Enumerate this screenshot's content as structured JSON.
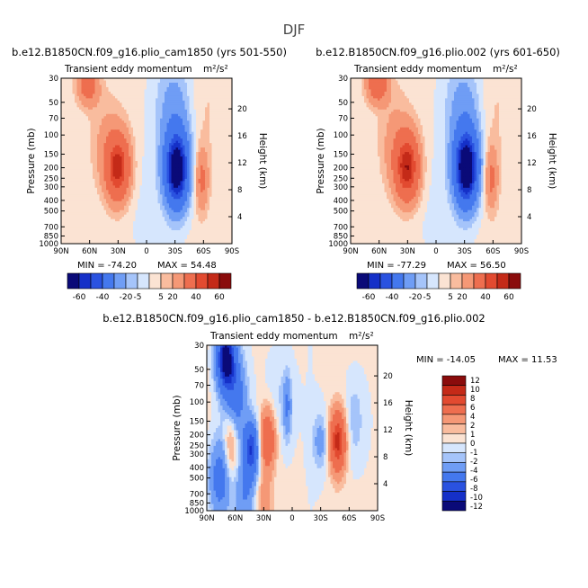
{
  "page_title": "DJF",
  "palettes": {
    "top": [
      "#0a0a78",
      "#1530c8",
      "#2a52e0",
      "#4478ee",
      "#6f9df5",
      "#a5c4fa",
      "#d6e6fd",
      "#fbe3d3",
      "#f9bc9e",
      "#f59876",
      "#ee6e4f",
      "#e24a30",
      "#c42a18",
      "#8a0c0c"
    ],
    "bottom": [
      "#0a0a78",
      "#1530c8",
      "#2a52e0",
      "#4478ee",
      "#6f9df5",
      "#a5c4fa",
      "#d6e6fd",
      "#fbe3d3",
      "#f9bc9e",
      "#f59876",
      "#ee6e4f",
      "#e24a30",
      "#c42a18",
      "#8a0c0c"
    ]
  },
  "shared_labels": {
    "variable": "Transient eddy momentum",
    "units": "m²/s²",
    "ylabel_left": "Pressure (mb)",
    "ylabel_right": "Height (km)",
    "x_ticks": [
      "90N",
      "60N",
      "30N",
      "0",
      "30S",
      "60S",
      "90S"
    ],
    "p_ticks": [
      "30",
      "50",
      "70",
      "100",
      "150",
      "200",
      "250",
      "300",
      "400",
      "500",
      "700",
      "850",
      "1000"
    ],
    "h_ticks": [
      "20",
      "16",
      "12",
      "8",
      "4"
    ]
  },
  "chart_data": [
    {
      "id": "left",
      "type": "heatmap",
      "title": "b.e12.B1850CN.f09_g16.plio_cam1850 (yrs 501-550)",
      "min_text": "MIN = -74.20",
      "max_text": "MAX = 54.48",
      "min": -74.2,
      "max": 54.48,
      "colorbar_labels": [
        "-60",
        "-40",
        "-20",
        "-5",
        "5",
        "20",
        "40",
        "60"
      ],
      "blobs": [
        {
          "lat": 62,
          "p": 35,
          "dlat": 8,
          "dlogp": 0.13,
          "amp": 28
        },
        {
          "lat": 30,
          "p": 200,
          "dlat": 9,
          "dlogp": 0.22,
          "amp": 54
        },
        {
          "lat": 45,
          "p": 120,
          "dlat": 12,
          "dlogp": 0.35,
          "amp": 10
        },
        {
          "lat": -32,
          "p": 210,
          "dlat": 9,
          "dlogp": 0.24,
          "amp": -74
        },
        {
          "lat": -30,
          "p": 60,
          "dlat": 14,
          "dlogp": 0.35,
          "amp": -14
        },
        {
          "lat": -58,
          "p": 260,
          "dlat": 5,
          "dlogp": 0.2,
          "amp": 22
        },
        {
          "lat": 15,
          "p": 400,
          "dlat": 20,
          "dlogp": 0.4,
          "amp": -3
        },
        {
          "lat": -60,
          "p": 60,
          "dlat": 15,
          "dlogp": 0.4,
          "amp": 4
        }
      ],
      "base": 2
    },
    {
      "id": "right",
      "type": "heatmap",
      "title": "b.e12.B1850CN.f09_g16.plio.002 (yrs 601-650)",
      "min_text": "MIN = -77.29",
      "max_text": "MAX = 56.50",
      "min": -77.29,
      "max": 56.5,
      "colorbar_labels": [
        "-60",
        "-40",
        "-20",
        "-5",
        "5",
        "20",
        "40",
        "60"
      ],
      "blobs": [
        {
          "lat": 62,
          "p": 33,
          "dlat": 8,
          "dlogp": 0.13,
          "amp": 36
        },
        {
          "lat": 30,
          "p": 200,
          "dlat": 9,
          "dlogp": 0.22,
          "amp": 56
        },
        {
          "lat": 45,
          "p": 120,
          "dlat": 12,
          "dlogp": 0.35,
          "amp": 12
        },
        {
          "lat": -32,
          "p": 205,
          "dlat": 9,
          "dlogp": 0.24,
          "amp": -77
        },
        {
          "lat": -30,
          "p": 60,
          "dlat": 14,
          "dlogp": 0.35,
          "amp": -14
        },
        {
          "lat": -58,
          "p": 250,
          "dlat": 5,
          "dlogp": 0.2,
          "amp": 22
        },
        {
          "lat": 15,
          "p": 400,
          "dlat": 20,
          "dlogp": 0.4,
          "amp": -3
        },
        {
          "lat": -60,
          "p": 60,
          "dlat": 15,
          "dlogp": 0.4,
          "amp": 4
        }
      ],
      "base": 2
    },
    {
      "id": "diff",
      "type": "heatmap",
      "title": "b.e12.B1850CN.f09_g16.plio_cam1850 - b.e12.B1850CN.f09_g16.plio.002",
      "min_text": "MIN = -14.05",
      "max_text": "MAX = 11.53",
      "min": -14.05,
      "max": 11.53,
      "colorbar_labels": [
        "12",
        "10",
        "8",
        "6",
        "4",
        "2",
        "1",
        "0",
        "-1",
        "-2",
        "-4",
        "-6",
        "-8",
        "-10",
        "-12"
      ],
      "blobs": [
        {
          "lat": 70,
          "p": 40,
          "dlat": 7,
          "dlogp": 0.2,
          "amp": -14
        },
        {
          "lat": 60,
          "p": 90,
          "dlat": 8,
          "dlogp": 0.25,
          "amp": -6
        },
        {
          "lat": 43,
          "p": 270,
          "dlat": 6,
          "dlogp": 0.18,
          "amp": -10
        },
        {
          "lat": 26,
          "p": 220,
          "dlat": 6,
          "dlogp": 0.2,
          "amp": 8
        },
        {
          "lat": -48,
          "p": 230,
          "dlat": 6,
          "dlogp": 0.2,
          "amp": 11
        },
        {
          "lat": -30,
          "p": 230,
          "dlat": 6,
          "dlogp": 0.18,
          "amp": -3
        },
        {
          "lat": 76,
          "p": 500,
          "dlat": 8,
          "dlogp": 0.25,
          "amp": -6
        },
        {
          "lat": 50,
          "p": 700,
          "dlat": 8,
          "dlogp": 0.2,
          "amp": -4
        },
        {
          "lat": 65,
          "p": 250,
          "dlat": 5,
          "dlogp": 0.25,
          "amp": 4
        },
        {
          "lat": 5,
          "p": 110,
          "dlat": 3,
          "dlogp": 0.2,
          "amp": -4
        },
        {
          "lat": -65,
          "p": 150,
          "dlat": 8,
          "dlogp": 0.3,
          "amp": -2
        },
        {
          "lat": 30,
          "p": 800,
          "dlat": 6,
          "dlogp": 0.15,
          "amp": 3
        },
        {
          "lat": 15,
          "p": 100,
          "dlat": 10,
          "dlogp": 0.35,
          "amp": -1.5
        }
      ],
      "base": 0.4
    }
  ]
}
